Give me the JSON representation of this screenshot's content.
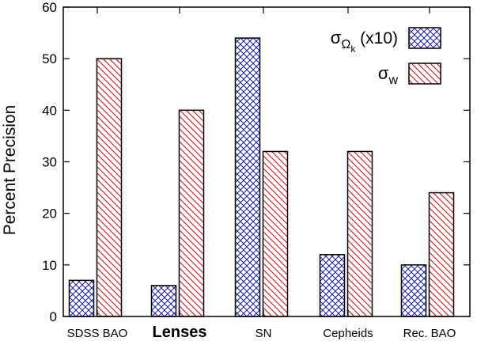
{
  "chart_data": {
    "type": "bar",
    "title": "",
    "xlabel": "",
    "ylabel": "Percent Precision",
    "ylim": [
      0,
      60
    ],
    "yticks": [
      "0",
      "10",
      "20",
      "30",
      "40",
      "50",
      "60"
    ],
    "grid": false,
    "legend_position": "top-right",
    "categories": [
      "SDSS BAO",
      "Lenses",
      "SN",
      "Cepheids",
      "Rec. BAO"
    ],
    "emphasized_category": "Lenses",
    "series": [
      {
        "name": "σΩk (x10)",
        "name_base": "σ",
        "name_sub": "Ω",
        "name_subsub": "k",
        "name_suffix": " (x10)",
        "values": [
          7,
          6,
          54,
          12,
          10
        ],
        "color": "#1a1aa6",
        "pattern": "crosshatch"
      },
      {
        "name": "σw",
        "name_base": "σ",
        "name_sub": "w",
        "values": [
          50,
          40,
          32,
          32,
          24
        ],
        "color": "#e0201c",
        "pattern": "diagonal"
      }
    ]
  }
}
